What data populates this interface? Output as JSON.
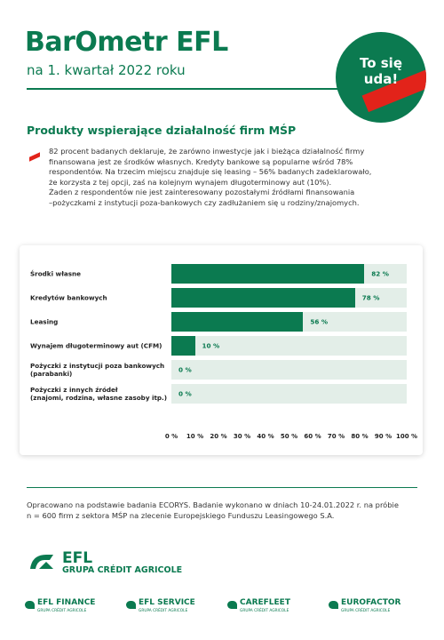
{
  "header": {
    "title": "BarOmetr EFL",
    "subtitle": "na 1. kwartał 2022 roku",
    "badge": "To się uda!"
  },
  "section": {
    "title": "Produkty wspierające działalność firm MŚP",
    "paragraph": [
      "82 procent badanych deklaruje, że zarówno inwestycje jak i bieżąca działalność firmy",
      "finansowana jest ze środków własnych. Kredyty bankowe są popularne wśród 78%",
      "respondentów. Na trzecim miejscu znajduje się leasing – 56% badanych zadeklarowało,",
      "że korzysta z tej opcji, zaś na kolejnym wynajem długoterminowy aut (10%).",
      "Żaden z respondentów nie jest zainteresowany pozostałymi źródłami finansowania",
      "–pożyczkami z instytucji poza-bankowych czy zadłużaniem się u rodziny/znajomych."
    ]
  },
  "chart_data": {
    "type": "bar",
    "orientation": "horizontal",
    "categories": [
      "Środki własne",
      "Kredytów bankowych",
      "Leasing",
      "Wynajem długoterminowy aut (CFM)",
      "Pożyczki z instytucji poza bankowych\n(parabanki)",
      "Pożyczki z innych źródeł\n(znajomi, rodzina, własne zasoby itp.)"
    ],
    "values": [
      82,
      78,
      56,
      10,
      0,
      0
    ],
    "value_labels": [
      "82 %",
      "78 %",
      "56 %",
      "10 %",
      "0 %",
      "0 %"
    ],
    "color": "#0b7a50",
    "track_color": "#e3eee8",
    "xlim": [
      0,
      100
    ],
    "xticks": [
      {
        "value": 0,
        "label": "0 %"
      },
      {
        "value": 10,
        "label": "10 %"
      },
      {
        "value": 20,
        "label": "20 %"
      },
      {
        "value": 30,
        "label": "30 %"
      },
      {
        "value": 40,
        "label": "40 %"
      },
      {
        "value": 50,
        "label": "50 %"
      },
      {
        "value": 60,
        "label": "60 %"
      },
      {
        "value": 70,
        "label": "70 %"
      },
      {
        "value": 80,
        "label": "80 %"
      },
      {
        "value": 90,
        "label": "90 %"
      },
      {
        "value": 100,
        "label": "100 %"
      }
    ]
  },
  "footnote": [
    "Opracowano na podstawie badania ECORYS. Badanie wykonano w dniach 10-24.01.2022 r. na próbie",
    "n = 600 firm z sektora MŚP na zlecenie Europejskiego Funduszu Leasingowego S.A."
  ],
  "logo": {
    "name": "EFL",
    "group": "GRUPA CRÉDIT AGRICOLE"
  },
  "brands": [
    {
      "name": "EFL FINANCE",
      "group": "GRUPA CRÉDIT AGRICOLE"
    },
    {
      "name": "EFL SERVICE",
      "group": "GRUPA CRÉDIT AGRICOLE"
    },
    {
      "name": "CAREFLEET",
      "group": "GRUPA CRÉDIT AGRICOLE"
    },
    {
      "name": "EUROFACTOR",
      "group": "GRUPA CRÉDIT AGRICOLE"
    }
  ]
}
